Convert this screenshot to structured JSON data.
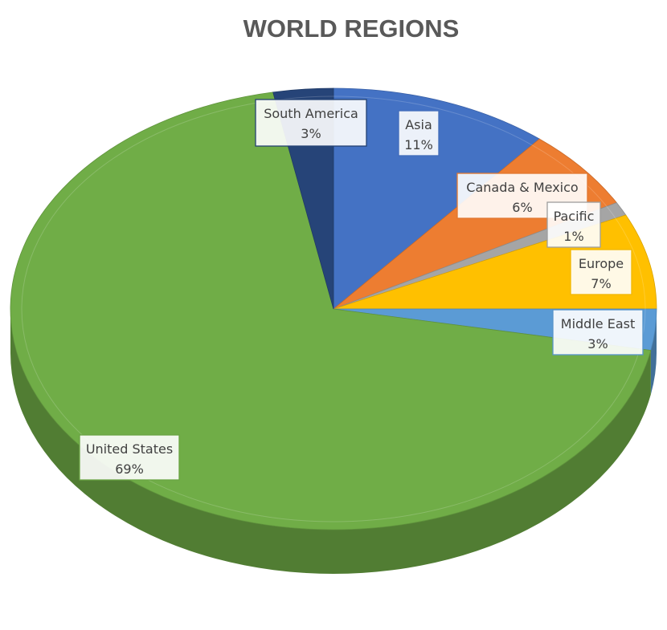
{
  "chart_data": {
    "type": "pie",
    "title": "WORLD REGIONS",
    "slices": [
      {
        "name": "Asia",
        "value": 11,
        "label": "11%",
        "color": "#4472C4"
      },
      {
        "name": "Canada & Mexico",
        "value": 6,
        "label": "6%",
        "color": "#ED7D31"
      },
      {
        "name": "Pacific",
        "value": 1,
        "label": "1%",
        "color": "#A5A5A5"
      },
      {
        "name": "Europe",
        "value": 7,
        "label": "7%",
        "color": "#FFC000"
      },
      {
        "name": "Middle East",
        "value": 3,
        "label": "3%",
        "color": "#5B9BD5"
      },
      {
        "name": "United States",
        "value": 69,
        "label": "69%",
        "color": "#70AD47"
      },
      {
        "name": "South America",
        "value": 3,
        "label": "3%",
        "color": "#264478"
      }
    ]
  }
}
